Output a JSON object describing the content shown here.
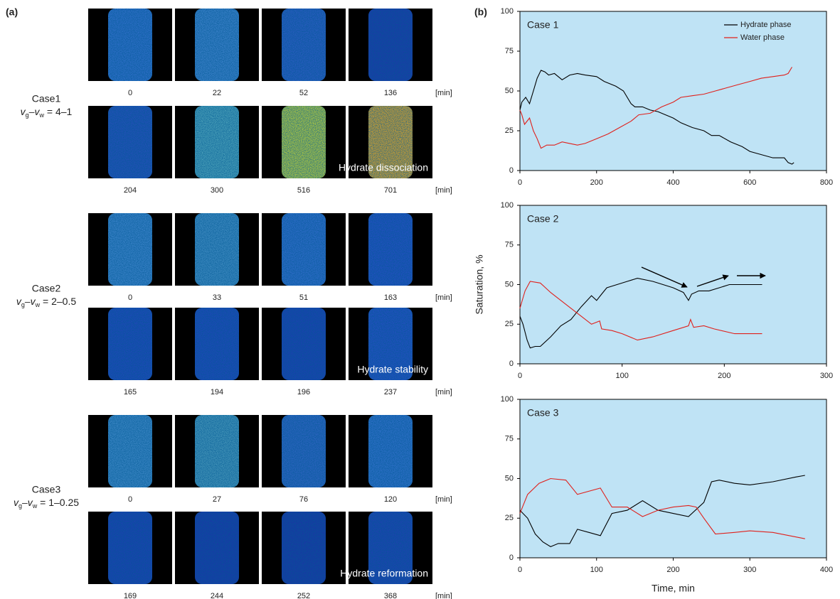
{
  "panel_a": {
    "label": "(a)",
    "unit": "[min]",
    "cases": [
      {
        "title": "Case1",
        "condition": [
          "v",
          "g",
          "–v",
          "w",
          " = 4–1"
        ],
        "rows": [
          [
            "0",
            "22",
            "52",
            "136"
          ],
          [
            "204",
            "300",
            "516",
            "701"
          ]
        ],
        "annotation": "Hydrate dissociation"
      },
      {
        "title": "Case2",
        "condition": [
          "v",
          "g",
          "–v",
          "w",
          " = 2–0.5"
        ],
        "rows": [
          [
            "0",
            "33",
            "51",
            "163"
          ],
          [
            "165",
            "194",
            "196",
            "237"
          ]
        ],
        "annotation": "Hydrate stability"
      },
      {
        "title": "Case3",
        "condition": [
          "v",
          "g",
          "–v",
          "w",
          " = 1–0.25"
        ],
        "rows": [
          [
            "0",
            "27",
            "76",
            "120"
          ],
          [
            "169",
            "244",
            "252",
            "368"
          ]
        ],
        "annotation": "Hydrate reformation"
      }
    ]
  },
  "panel_b_label": "(b)",
  "chart_data": [
    {
      "type": "line",
      "title": "Case 1",
      "legend": "upper right",
      "background": "#bfe3f5",
      "xlim": [
        0,
        800
      ],
      "xticks": [
        0,
        200,
        400,
        600,
        800
      ],
      "ylim": [
        0,
        100
      ],
      "yticks": [
        0,
        25,
        50,
        75,
        100
      ],
      "series": [
        {
          "name": "Hydrate phase",
          "color": "#000000",
          "x": [
            0,
            5,
            15,
            25,
            35,
            45,
            55,
            65,
            75,
            90,
            110,
            130,
            150,
            170,
            200,
            220,
            250,
            270,
            290,
            300,
            320,
            340,
            360,
            380,
            400,
            420,
            450,
            480,
            500,
            520,
            550,
            580,
            600,
            630,
            660,
            690,
            700,
            710,
            715
          ],
          "values": [
            38,
            43,
            46,
            42,
            50,
            58,
            63,
            62,
            60,
            61,
            57,
            60,
            61,
            60,
            59,
            56,
            53,
            50,
            42,
            40,
            40,
            38,
            37,
            35,
            33,
            30,
            27,
            25,
            22,
            22,
            18,
            15,
            12,
            10,
            8,
            8,
            5,
            4,
            5
          ]
        },
        {
          "name": "Water phase",
          "color": "#e0201b",
          "x": [
            0,
            5,
            12,
            25,
            35,
            45,
            55,
            70,
            90,
            110,
            130,
            150,
            170,
            200,
            230,
            260,
            290,
            310,
            340,
            370,
            400,
            420,
            450,
            480,
            510,
            540,
            570,
            600,
            630,
            660,
            690,
            700,
            710
          ],
          "values": [
            38,
            35,
            29,
            33,
            25,
            20,
            14,
            16,
            16,
            18,
            17,
            16,
            17,
            20,
            23,
            27,
            31,
            35,
            36,
            40,
            43,
            46,
            47,
            48,
            50,
            52,
            54,
            56,
            58,
            59,
            60,
            61,
            65
          ]
        }
      ]
    },
    {
      "type": "line",
      "title": "Case 2",
      "background": "#bfe3f5",
      "ylabel": "Saturation, %",
      "xlim": [
        0,
        300
      ],
      "xticks": [
        0,
        100,
        200,
        300
      ],
      "ylim": [
        0,
        100
      ],
      "yticks": [
        0,
        25,
        50,
        75,
        100
      ],
      "series": [
        {
          "color": "#000000",
          "x": [
            0,
            3,
            7,
            10,
            15,
            20,
            30,
            40,
            50,
            60,
            70,
            75,
            80,
            85,
            95,
            105,
            115,
            130,
            150,
            160,
            165,
            168,
            175,
            185,
            195,
            205,
            220,
            237
          ],
          "values": [
            30,
            25,
            15,
            10,
            11,
            11,
            17,
            24,
            28,
            36,
            43,
            40,
            44,
            48,
            50,
            52,
            54,
            52,
            48,
            45,
            40,
            44,
            46,
            46,
            48,
            50,
            50,
            50
          ]
        },
        {
          "color": "#e0201b",
          "x": [
            0,
            5,
            10,
            20,
            30,
            40,
            50,
            60,
            70,
            78,
            80,
            90,
            100,
            115,
            130,
            150,
            165,
            167,
            170,
            180,
            190,
            210,
            237
          ],
          "values": [
            35,
            46,
            52,
            51,
            45,
            40,
            35,
            30,
            25,
            27,
            22,
            21,
            19,
            15,
            17,
            21,
            24,
            28,
            23,
            24,
            22,
            19,
            19
          ]
        }
      ]
    },
    {
      "type": "line",
      "title": "Case 3",
      "background": "#bfe3f5",
      "xlabel": "Time, min",
      "xlim": [
        0,
        400
      ],
      "xticks": [
        0,
        100,
        200,
        300,
        400
      ],
      "ylim": [
        0,
        100
      ],
      "yticks": [
        0,
        25,
        50,
        75,
        100
      ],
      "series": [
        {
          "color": "#000000",
          "x": [
            0,
            10,
            20,
            30,
            40,
            50,
            65,
            75,
            90,
            105,
            120,
            140,
            160,
            180,
            200,
            220,
            240,
            250,
            260,
            280,
            300,
            330,
            360,
            372
          ],
          "values": [
            30,
            25,
            15,
            10,
            7,
            9,
            9,
            18,
            16,
            14,
            28,
            30,
            36,
            30,
            28,
            26,
            35,
            48,
            49,
            47,
            46,
            48,
            51,
            52
          ]
        },
        {
          "color": "#e0201b",
          "x": [
            0,
            10,
            25,
            40,
            60,
            75,
            105,
            120,
            140,
            160,
            180,
            200,
            220,
            230,
            240,
            255,
            280,
            300,
            330,
            372
          ],
          "values": [
            28,
            40,
            47,
            50,
            49,
            40,
            44,
            32,
            32,
            26,
            30,
            32,
            33,
            32,
            25,
            15,
            16,
            17,
            16,
            12
          ]
        }
      ]
    }
  ]
}
